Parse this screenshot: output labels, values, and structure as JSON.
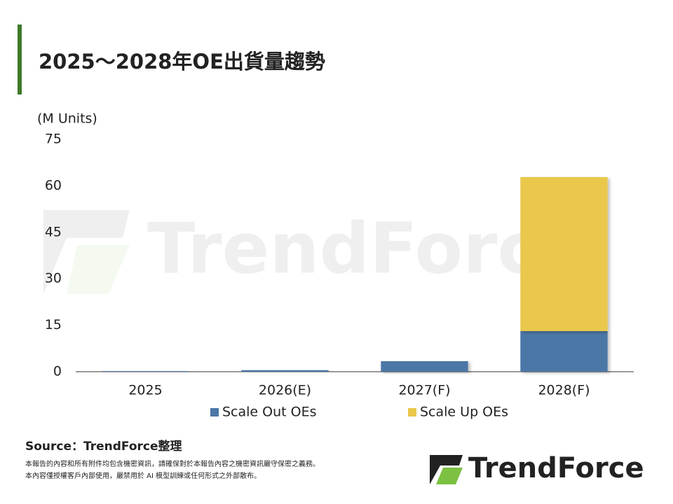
{
  "chart_data": {
    "type": "stacked_bar",
    "title": "2025～2028年OE出貨量趨勢",
    "y_axis_label": "(M Units)",
    "categories": [
      "2025",
      "2026(E)",
      "2027(F)",
      "2028(F)"
    ],
    "series": [
      {
        "name": "Scale Out OEs",
        "color": "#4b77a6",
        "values": [
          0.2,
          0.5,
          3.4,
          13.1
        ]
      },
      {
        "name": "Scale Up OEs",
        "color": "#e9c84b",
        "values": [
          0,
          0,
          0,
          49.7
        ]
      }
    ],
    "ylim": [
      0,
      75
    ],
    "yticks": [
      0,
      15,
      30,
      45,
      60,
      75
    ],
    "grid": false,
    "legend": "bottom",
    "watermark": "TrendForce",
    "source": "Source：TrendForce整理",
    "notes": [
      "本報告的內容和所有附件均包含機密資訊，請確保對於本報告內容之機密資訊嚴守保密之義務。",
      "本內容僅授權客戶內部使用，嚴禁用於 AI 模型訓練或任何形式之外部散布。"
    ],
    "logo": "TrendForce"
  }
}
